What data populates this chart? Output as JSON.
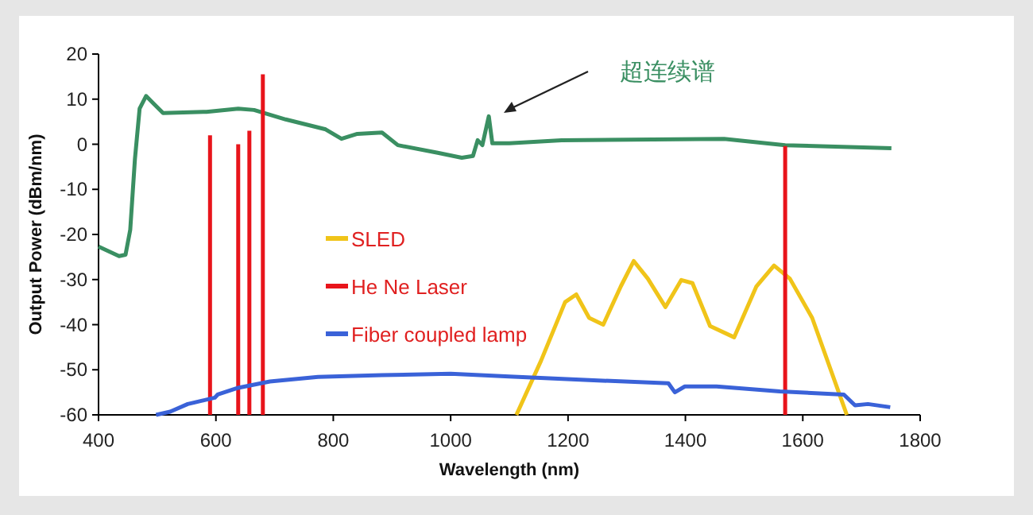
{
  "chart_data": {
    "type": "line",
    "xlabel": "Wavelength (nm)",
    "ylabel": "Output Power (dBm/nm)",
    "xlim": [
      400,
      1800
    ],
    "ylim": [
      -60,
      20
    ],
    "xticks": [
      400,
      600,
      800,
      1000,
      1200,
      1400,
      1600,
      1800
    ],
    "yticks": [
      -60,
      -50,
      -40,
      -30,
      -20,
      -10,
      0,
      10,
      20
    ],
    "legend": "center",
    "annotations": [
      "超连续谱"
    ],
    "series": [
      {
        "color": "#3a8f62",
        "x": [
          400,
          435,
          446,
          454,
          462,
          470,
          481,
          494,
          510,
          584,
          638,
          665,
          719,
          787,
          814,
          841,
          883,
          910,
          978,
          1019,
          1038,
          1046,
          1054,
          1065,
          1071,
          1100,
          1189,
          1466,
          1570,
          1751
        ],
        "values": [
          -22.7,
          -24.8,
          -24.5,
          -19,
          -3.3,
          7.9,
          10.7,
          9,
          6.9,
          7.2,
          7.9,
          7.6,
          5.5,
          3.3,
          1.2,
          2.3,
          2.6,
          -0.2,
          -1.9,
          -3,
          -2.6,
          0.9,
          -0.2,
          6.2,
          0.2,
          0.2,
          0.9,
          1.2,
          -0.2,
          -0.9
        ]
      },
      {
        "name": "SLED",
        "color": "#f0c419",
        "x": [
          1112,
          1154,
          1195,
          1214,
          1236,
          1260,
          1290,
          1312,
          1336,
          1366,
          1393,
          1412,
          1442,
          1483,
          1521,
          1551,
          1578,
          1616,
          1675
        ],
        "values": [
          -60,
          -48,
          -35,
          -33.3,
          -38.5,
          -40,
          -31.5,
          -25.9,
          -29.8,
          -36.1,
          -30.1,
          -30.8,
          -40.3,
          -42.8,
          -31.5,
          -26.9,
          -29.8,
          -38.5,
          -60
        ]
      },
      {
        "name": "He Ne Laser",
        "color": "#e8141b",
        "x": [
          590,
          590,
          614,
          638,
          638,
          648,
          657,
          657,
          668,
          680,
          680,
          1100,
          1570,
          1570
        ],
        "values": [
          -60,
          2,
          null,
          -60,
          0,
          null,
          -60,
          3,
          null,
          -60,
          15.5,
          null,
          -60,
          -0.4
        ]
      },
      {
        "name": "Fiber coupled lamp",
        "color": "#3a62d8",
        "x": [
          498,
          522,
          552,
          598,
          603,
          638,
          692,
          774,
          883,
          1000,
          1100,
          1236,
          1371,
          1382,
          1399,
          1453,
          1561,
          1670,
          1689,
          1711,
          1749
        ],
        "values": [
          -60,
          -59.3,
          -57.6,
          -56.2,
          -55.5,
          -54,
          -52.6,
          -51.6,
          -51.2,
          -50.9,
          -51.5,
          -52.3,
          -53,
          -55,
          -53.7,
          -53.7,
          -54.8,
          -55.5,
          -57.9,
          -57.6,
          -58.3
        ]
      }
    ]
  }
}
